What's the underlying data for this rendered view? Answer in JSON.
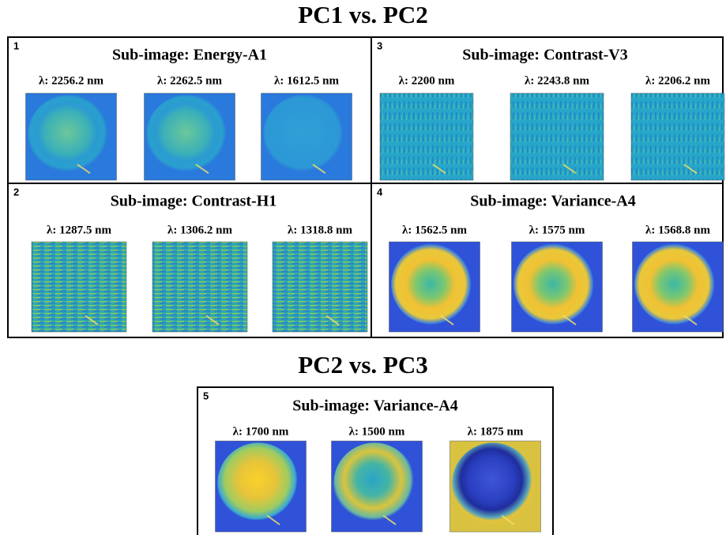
{
  "groups": [
    {
      "title": "PC1 vs. PC2",
      "panels": [
        {
          "number": "1",
          "title": "Sub-image: Energy-A1",
          "images": [
            "λ: 2256.2 nm",
            "λ: 2262.5 nm",
            "λ: 1612.5 nm"
          ]
        },
        {
          "number": "3",
          "title": "Sub-image: Contrast-V3",
          "images": [
            "λ: 2200 nm",
            "λ: 2243.8 nm",
            "λ: 2206.2 nm"
          ]
        },
        {
          "number": "2",
          "title": "Sub-image: Contrast-H1",
          "images": [
            "λ: 1287.5 nm",
            "λ: 1306.2 nm",
            "λ: 1318.8 nm"
          ]
        },
        {
          "number": "4",
          "title": "Sub-image: Variance-A4",
          "images": [
            "λ: 1562.5 nm",
            "λ: 1575 nm",
            "λ: 1568.8 nm"
          ]
        }
      ]
    },
    {
      "title": "PC2 vs. PC3",
      "panels": [
        {
          "number": "5",
          "title": "Sub-image: Variance-A4",
          "images": [
            "λ: 1700 nm",
            "λ: 1500 nm",
            "λ: 1875 nm"
          ]
        }
      ]
    }
  ]
}
